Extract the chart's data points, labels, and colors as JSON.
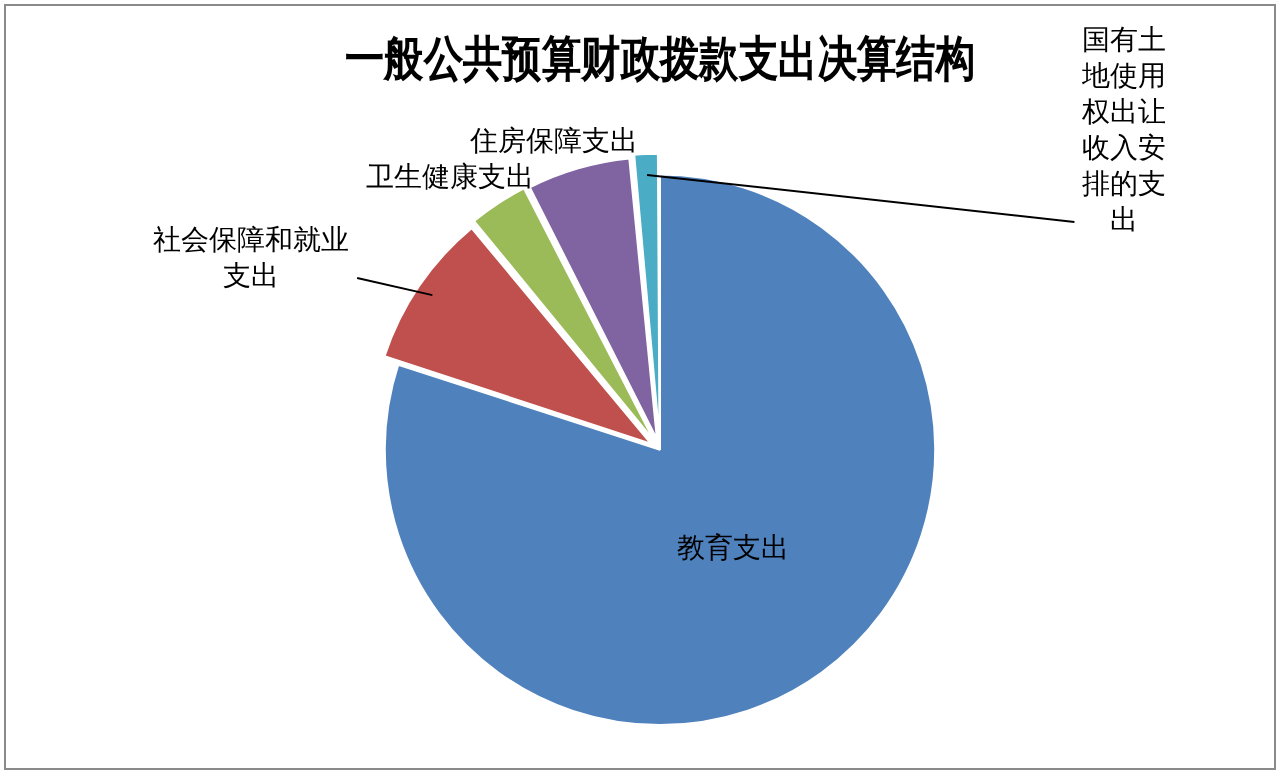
{
  "chart_data": {
    "type": "pie",
    "title": "一般公共预算财政拨款支出决算结构",
    "categories": [
      "教育支出",
      "社会保障和就业支出",
      "卫生健康支出",
      "住房保障支出",
      "国有土地使用权出让收入安排的支出"
    ],
    "values": [
      80,
      9,
      3.5,
      6,
      1.5
    ],
    "colors": [
      "#4f81bd",
      "#c0504d",
      "#9bbb59",
      "#8064a2",
      "#4bacc6"
    ],
    "legend": false
  }
}
